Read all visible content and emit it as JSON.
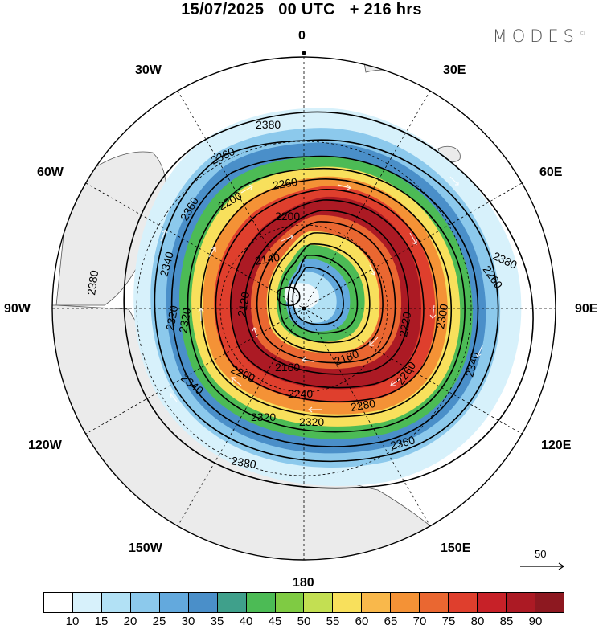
{
  "header": {
    "date": "15/07/2025",
    "time": "00 UTC",
    "lead": "+ 216 hrs"
  },
  "brand": {
    "name": "MODES",
    "mark": "©"
  },
  "map": {
    "projection": "polar-stereographic",
    "longitude_labels": {
      "top": "0",
      "top_left": "30W",
      "top_right": "30E",
      "upper_left": "60W",
      "upper_right": "60E",
      "left": "90W",
      "right": "90E",
      "lower_left": "120W",
      "lower_right": "120E",
      "bottom_left": "150W",
      "bottom_right": "150E",
      "bottom": "180"
    },
    "contour_labels": [
      "2380",
      "2360",
      "2340",
      "2320",
      "2300",
      "2280",
      "2260",
      "2240",
      "2220",
      "2200",
      "2180",
      "2160",
      "2140",
      "2120"
    ],
    "reference_vector": "50"
  },
  "colorbar": {
    "colors": [
      "#ffffff",
      "#d7f1fb",
      "#b2e1f5",
      "#8cc9ec",
      "#63a9dd",
      "#4a8fc9",
      "#3fa08b",
      "#4cbb55",
      "#7fcb43",
      "#c3df52",
      "#f8e05c",
      "#f9b84b",
      "#f49236",
      "#ea6731",
      "#df3f2d",
      "#c72128",
      "#ac1a24",
      "#8d1820"
    ],
    "tick_labels": [
      "10",
      "15",
      "20",
      "25",
      "30",
      "35",
      "40",
      "45",
      "50",
      "55",
      "60",
      "65",
      "70",
      "75",
      "80",
      "85",
      "90"
    ]
  }
}
